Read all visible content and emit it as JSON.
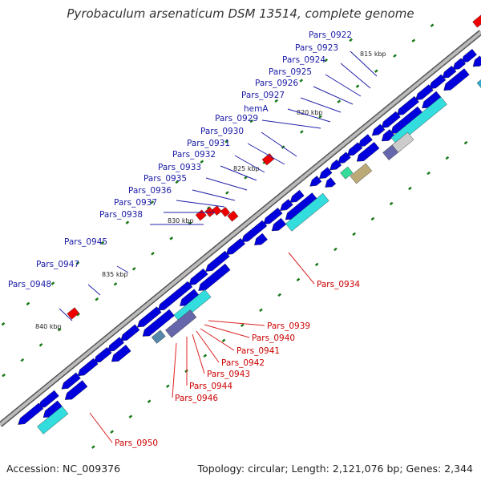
{
  "title": "Pyrobaculum arsenaticum DSM 13514, complete genome",
  "footer": {
    "accession": "Accession: NC_009376",
    "summary": "Topology: circular; Length: 2,121,076 bp; Genes: 2,344"
  },
  "colors": {
    "forward_gene": "#0000dd",
    "reverse_gene": "#ee0000",
    "forward_label": "#1a1aa6",
    "reverse_label": "#cc0000",
    "backbone": "#888888",
    "rna_cyan": "#33dddd",
    "slate": "#6666aa",
    "tick_dash": "#1a7a1a"
  },
  "scale_labels": [
    "815 kbp",
    "820 kbp",
    "825 kbp",
    "830 kbp",
    "835 kbp",
    "840 kbp"
  ],
  "forward_labels": [
    "Pars_0922",
    "Pars_0923",
    "Pars_0924",
    "Pars_0925",
    "Pars_0926",
    "Pars_0927",
    "hemA",
    "Pars_0929",
    "Pars_0930",
    "Pars_0931",
    "Pars_0932",
    "Pars_0933",
    "Pars_0935",
    "Pars_0936",
    "Pars_0937",
    "Pars_0938",
    "Pars_0945",
    "Pars_0947",
    "Pars_0948"
  ],
  "reverse_labels": [
    "Pars_0934",
    "Pars_0939",
    "Pars_0940",
    "Pars_0941",
    "Pars_0942",
    "Pars_0943",
    "Pars_0944",
    "Pars_0946",
    "Pars_0950"
  ]
}
